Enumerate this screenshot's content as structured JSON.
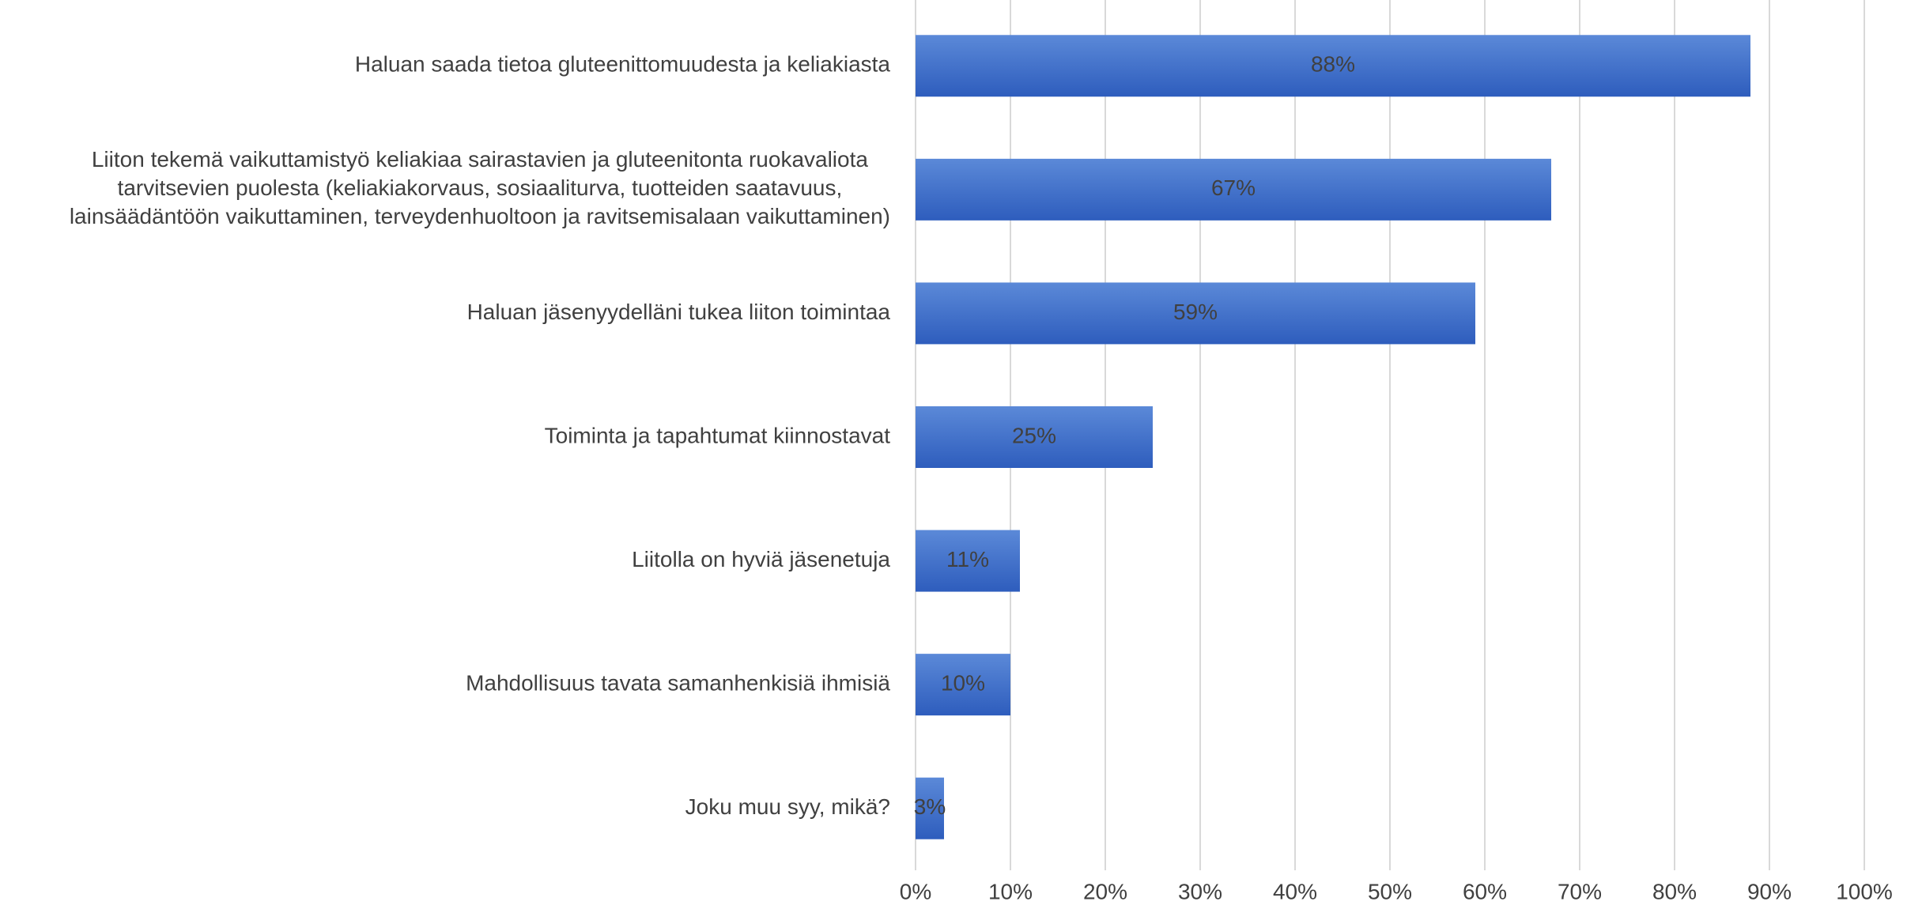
{
  "chart_data": {
    "type": "barh",
    "categories": [
      "Haluan saada tietoa gluteenittomuudesta ja keliakiasta",
      "Liiton tekemä vaikuttamistyö keliakiaa sairastavien ja gluteenitonta ruokavaliota\ntarvitsevien puolesta (keliakiakorvaus, sosiaaliturva, tuotteiden saatavuus,\nlainsäädäntöön vaikuttaminen, terveydenhuoltoon ja ravitsemisalaan vaikuttaminen)",
      "Haluan jäsenyydelläni tukea liiton toimintaa",
      "Toiminta ja tapahtumat kiinnostavat",
      "Liitolla on hyviä jäsenetuja",
      "Mahdollisuus tavata samanhenkisiä ihmisiä",
      "Joku muu syy, mikä?"
    ],
    "values": [
      88,
      67,
      59,
      25,
      11,
      10,
      3
    ],
    "value_labels": [
      "88%",
      "67%",
      "59%",
      "25%",
      "11%",
      "10%",
      "3%"
    ],
    "color": "#4472c4",
    "xlim": [
      0,
      100
    ],
    "xticks": [
      {
        "value": 0,
        "label": "0%"
      },
      {
        "value": 10,
        "label": "10%"
      },
      {
        "value": 20,
        "label": "20%"
      },
      {
        "value": 30,
        "label": "30%"
      },
      {
        "value": 40,
        "label": "40%"
      },
      {
        "value": 50,
        "label": "50%"
      },
      {
        "value": 60,
        "label": "60%"
      },
      {
        "value": 70,
        "label": "70%"
      },
      {
        "value": 80,
        "label": "80%"
      },
      {
        "value": 90,
        "label": "90%"
      },
      {
        "value": 100,
        "label": "100%"
      }
    ],
    "grid": true
  }
}
